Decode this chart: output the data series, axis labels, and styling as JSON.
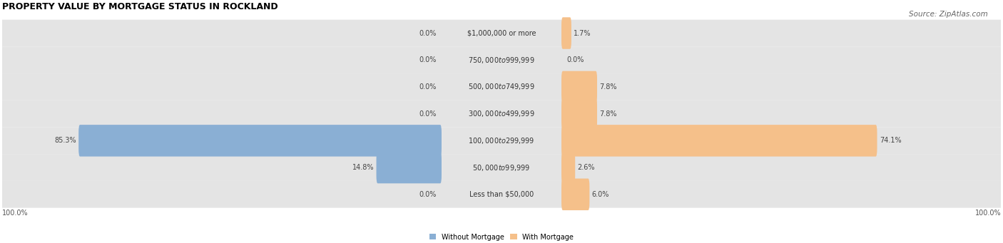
{
  "title": "PROPERTY VALUE BY MORTGAGE STATUS IN ROCKLAND",
  "source": "Source: ZipAtlas.com",
  "categories": [
    "Less than $50,000",
    "$50,000 to $99,999",
    "$100,000 to $299,999",
    "$300,000 to $499,999",
    "$500,000 to $749,999",
    "$750,000 to $999,999",
    "$1,000,000 or more"
  ],
  "without_mortgage": [
    0.0,
    14.8,
    85.3,
    0.0,
    0.0,
    0.0,
    0.0
  ],
  "with_mortgage": [
    6.0,
    2.6,
    74.1,
    7.8,
    7.8,
    0.0,
    1.7
  ],
  "color_without": "#8aafd4",
  "color_with": "#f5c08a",
  "bg_row_color": "#e4e4e4",
  "bar_height": 0.58,
  "scale": 0.93,
  "label_half": 13.5,
  "xlim": [
    -110,
    110
  ],
  "figsize": [
    14.06,
    3.41
  ],
  "dpi": 100,
  "axis_left_label": "100.0%",
  "axis_right_label": "100.0%",
  "legend_without": "Without Mortgage",
  "legend_with": "With Mortgage",
  "title_fontsize": 9,
  "source_fontsize": 7.5,
  "label_fontsize": 7,
  "category_fontsize": 7,
  "axis_label_fontsize": 7
}
